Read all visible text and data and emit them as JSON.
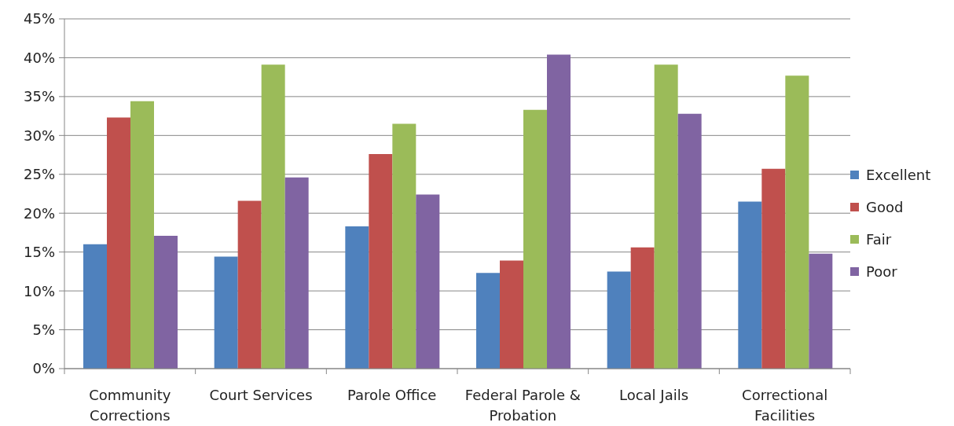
{
  "chart_data": {
    "type": "bar",
    "categories": [
      "Community Corrections",
      "Court Services",
      "Parole Office",
      "Federal Parole & Probation",
      "Local Jails",
      "Correctional Facilities"
    ],
    "series": [
      {
        "name": "Excellent",
        "color": "#4f81bd",
        "values": [
          16.0,
          14.4,
          18.3,
          12.3,
          12.5,
          21.5
        ]
      },
      {
        "name": "Good",
        "color": "#c0504d",
        "values": [
          32.3,
          21.6,
          27.6,
          13.9,
          15.6,
          25.7
        ]
      },
      {
        "name": "Fair",
        "color": "#9bbb59",
        "values": [
          34.4,
          39.1,
          31.5,
          33.3,
          39.1,
          37.7
        ]
      },
      {
        "name": "Poor",
        "color": "#8064a2",
        "values": [
          17.1,
          24.6,
          22.4,
          40.4,
          32.8,
          14.8
        ]
      }
    ],
    "ylim": [
      0,
      45
    ],
    "yticks": [
      {
        "value": 0,
        "label": "0%"
      },
      {
        "value": 5,
        "label": "5%"
      },
      {
        "value": 10,
        "label": "10%"
      },
      {
        "value": 15,
        "label": "15%"
      },
      {
        "value": 20,
        "label": "20%"
      },
      {
        "value": 25,
        "label": "25%"
      },
      {
        "value": 30,
        "label": "30%"
      },
      {
        "value": 35,
        "label": "35%"
      },
      {
        "value": 40,
        "label": "40%"
      },
      {
        "value": 45,
        "label": "45%"
      }
    ],
    "grid": "y",
    "legend": "right"
  }
}
